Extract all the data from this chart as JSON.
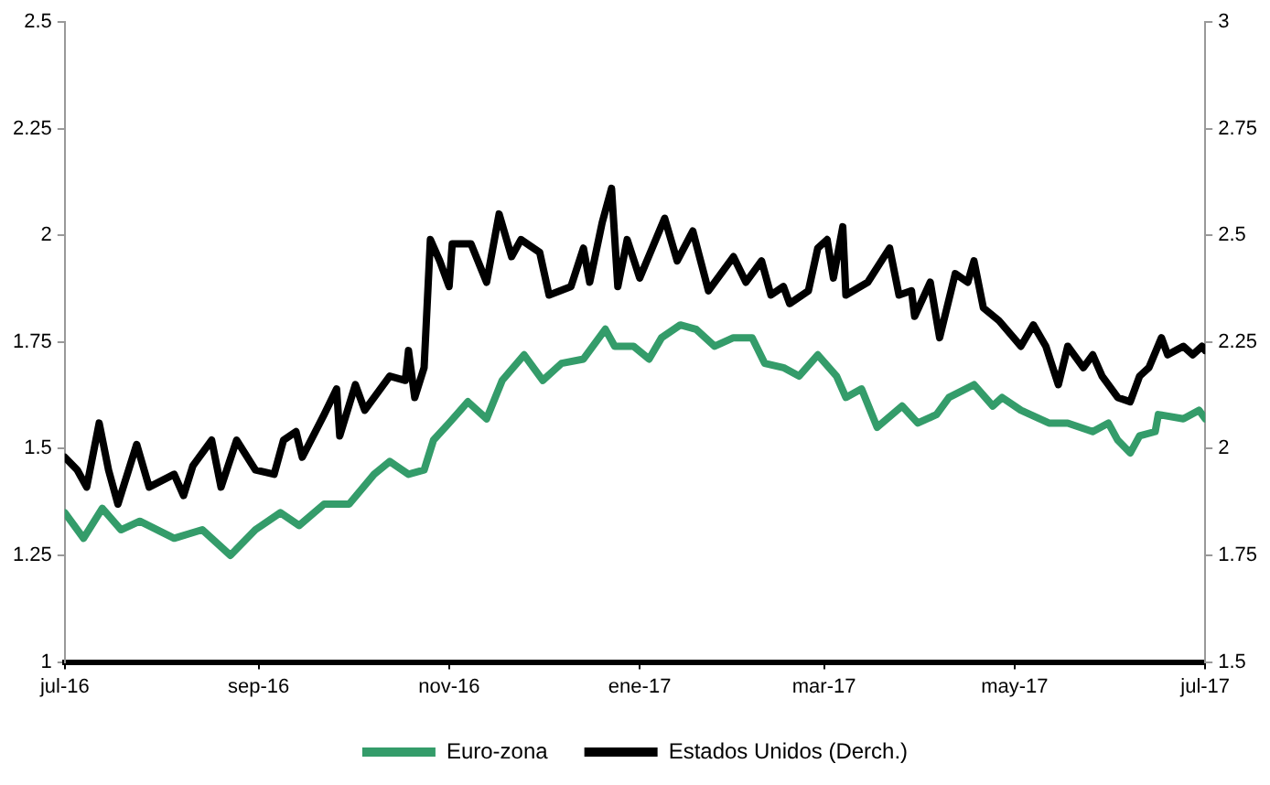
{
  "chart_data": {
    "type": "line",
    "xlim": [
      "2016-07-01",
      "2017-07-01"
    ],
    "xticks": [
      {
        "value": "2016-07-01",
        "label": "jul-16"
      },
      {
        "value": "2016-09-01",
        "label": "sep-16"
      },
      {
        "value": "2016-11-01",
        "label": "nov-16"
      },
      {
        "value": "2017-01-01",
        "label": "ene-17"
      },
      {
        "value": "2017-03-01",
        "label": "mar-17"
      },
      {
        "value": "2017-05-01",
        "label": "may-17"
      },
      {
        "value": "2017-07-01",
        "label": "jul-17"
      }
    ],
    "ylim": [
      1,
      2.5
    ],
    "yticks": [
      1,
      1.25,
      1.5,
      1.75,
      2,
      2.25,
      2.5
    ],
    "y2lim": [
      1.5,
      3
    ],
    "y2ticks": [
      1.5,
      1.75,
      2,
      2.25,
      2.5,
      2.75,
      3
    ],
    "grid": false,
    "legend": "bottom",
    "marker": "none",
    "line_style": "solid",
    "series": [
      {
        "name": "Euro-zona",
        "color": "#349c6a",
        "x": [
          "2016-07-01",
          "2016-07-07",
          "2016-07-13",
          "2016-07-19",
          "2016-07-25",
          "2016-08-05",
          "2016-08-14",
          "2016-08-23",
          "2016-08-31",
          "2016-09-08",
          "2016-09-14",
          "2016-09-22",
          "2016-09-30",
          "2016-10-08",
          "2016-10-13",
          "2016-10-19",
          "2016-10-24",
          "2016-10-27",
          "2016-11-01",
          "2016-11-07",
          "2016-11-13",
          "2016-11-18",
          "2016-11-25",
          "2016-12-01",
          "2016-12-07",
          "2016-12-14",
          "2016-12-21",
          "2016-12-24",
          "2016-12-30",
          "2017-01-04",
          "2017-01-08",
          "2017-01-14",
          "2017-01-19",
          "2017-01-25",
          "2017-01-31",
          "2017-02-06",
          "2017-02-10",
          "2017-02-16",
          "2017-02-21",
          "2017-02-27",
          "2017-03-05",
          "2017-03-08",
          "2017-03-13",
          "2017-03-18",
          "2017-03-26",
          "2017-03-31",
          "2017-04-06",
          "2017-04-10",
          "2017-04-18",
          "2017-04-24",
          "2017-04-27",
          "2017-05-03",
          "2017-05-12",
          "2017-05-18",
          "2017-05-26",
          "2017-05-31",
          "2017-06-03",
          "2017-06-07",
          "2017-06-10",
          "2017-06-15",
          "2017-06-16",
          "2017-06-24",
          "2017-06-29",
          "2017-07-01"
        ],
        "values": [
          1.35,
          1.29,
          1.36,
          1.31,
          1.33,
          1.29,
          1.31,
          1.25,
          1.31,
          1.35,
          1.32,
          1.37,
          1.37,
          1.44,
          1.47,
          1.44,
          1.45,
          1.52,
          1.56,
          1.61,
          1.57,
          1.66,
          1.72,
          1.66,
          1.7,
          1.71,
          1.78,
          1.74,
          1.74,
          1.71,
          1.76,
          1.79,
          1.78,
          1.74,
          1.76,
          1.76,
          1.7,
          1.69,
          1.67,
          1.72,
          1.67,
          1.62,
          1.64,
          1.55,
          1.6,
          1.56,
          1.58,
          1.62,
          1.65,
          1.6,
          1.62,
          1.59,
          1.56,
          1.56,
          1.54,
          1.56,
          1.52,
          1.49,
          1.53,
          1.54,
          1.58,
          1.57,
          1.59,
          1.57
        ]
      },
      {
        "name": "Estados Unidos (Derch.)",
        "color": "#000000",
        "axis": "y2",
        "x": [
          "2016-07-01",
          "2016-07-05",
          "2016-07-08",
          "2016-07-12",
          "2016-07-15",
          "2016-07-18",
          "2016-07-24",
          "2016-07-28",
          "2016-08-05",
          "2016-08-08",
          "2016-08-11",
          "2016-08-17",
          "2016-08-20",
          "2016-08-25",
          "2016-08-31",
          "2016-09-06",
          "2016-09-09",
          "2016-09-13",
          "2016-09-15",
          "2016-09-22",
          "2016-09-26",
          "2016-09-27",
          "2016-10-02",
          "2016-10-05",
          "2016-10-13",
          "2016-10-18",
          "2016-10-19",
          "2016-10-21",
          "2016-10-24",
          "2016-10-26",
          "2016-10-29",
          "2016-11-01",
          "2016-11-02",
          "2016-11-08",
          "2016-11-13",
          "2016-11-17",
          "2016-11-21",
          "2016-11-24",
          "2016-11-30",
          "2016-12-03",
          "2016-12-10",
          "2016-12-14",
          "2016-12-16",
          "2016-12-20",
          "2016-12-23",
          "2016-12-25",
          "2016-12-28",
          "2017-01-01",
          "2017-01-05",
          "2017-01-09",
          "2017-01-13",
          "2017-01-18",
          "2017-01-23",
          "2017-01-31",
          "2017-02-04",
          "2017-02-09",
          "2017-02-12",
          "2017-02-16",
          "2017-02-18",
          "2017-02-24",
          "2017-02-27",
          "2017-03-02",
          "2017-03-04",
          "2017-03-07",
          "2017-03-08",
          "2017-03-15",
          "2017-03-22",
          "2017-03-25",
          "2017-03-29",
          "2017-03-30",
          "2017-04-04",
          "2017-04-07",
          "2017-04-12",
          "2017-04-16",
          "2017-04-18",
          "2017-04-21",
          "2017-04-26",
          "2017-05-03",
          "2017-05-07",
          "2017-05-11",
          "2017-05-15",
          "2017-05-18",
          "2017-05-23",
          "2017-05-26",
          "2017-05-29",
          "2017-06-03",
          "2017-06-07",
          "2017-06-10",
          "2017-06-13",
          "2017-06-17",
          "2017-06-19",
          "2017-06-24",
          "2017-06-27",
          "2017-06-30",
          "2017-07-01"
        ],
        "values": [
          1.98,
          1.95,
          1.91,
          2.06,
          1.95,
          1.87,
          2.01,
          1.91,
          1.94,
          1.89,
          1.96,
          2.02,
          1.91,
          2.02,
          1.95,
          1.94,
          2.02,
          2.04,
          1.98,
          2.08,
          2.14,
          2.03,
          2.15,
          2.09,
          2.17,
          2.16,
          2.23,
          2.12,
          2.19,
          2.49,
          2.44,
          2.38,
          2.48,
          2.48,
          2.39,
          2.55,
          2.45,
          2.49,
          2.46,
          2.36,
          2.38,
          2.47,
          2.39,
          2.53,
          2.61,
          2.38,
          2.49,
          2.4,
          2.47,
          2.54,
          2.44,
          2.51,
          2.37,
          2.45,
          2.39,
          2.44,
          2.36,
          2.38,
          2.34,
          2.37,
          2.47,
          2.49,
          2.4,
          2.52,
          2.36,
          2.39,
          2.47,
          2.36,
          2.37,
          2.31,
          2.39,
          2.26,
          2.41,
          2.39,
          2.44,
          2.33,
          2.3,
          2.24,
          2.29,
          2.24,
          2.15,
          2.24,
          2.19,
          2.22,
          2.17,
          2.12,
          2.11,
          2.17,
          2.19,
          2.26,
          2.22,
          2.24,
          2.22,
          2.24,
          2.23
        ]
      }
    ]
  }
}
